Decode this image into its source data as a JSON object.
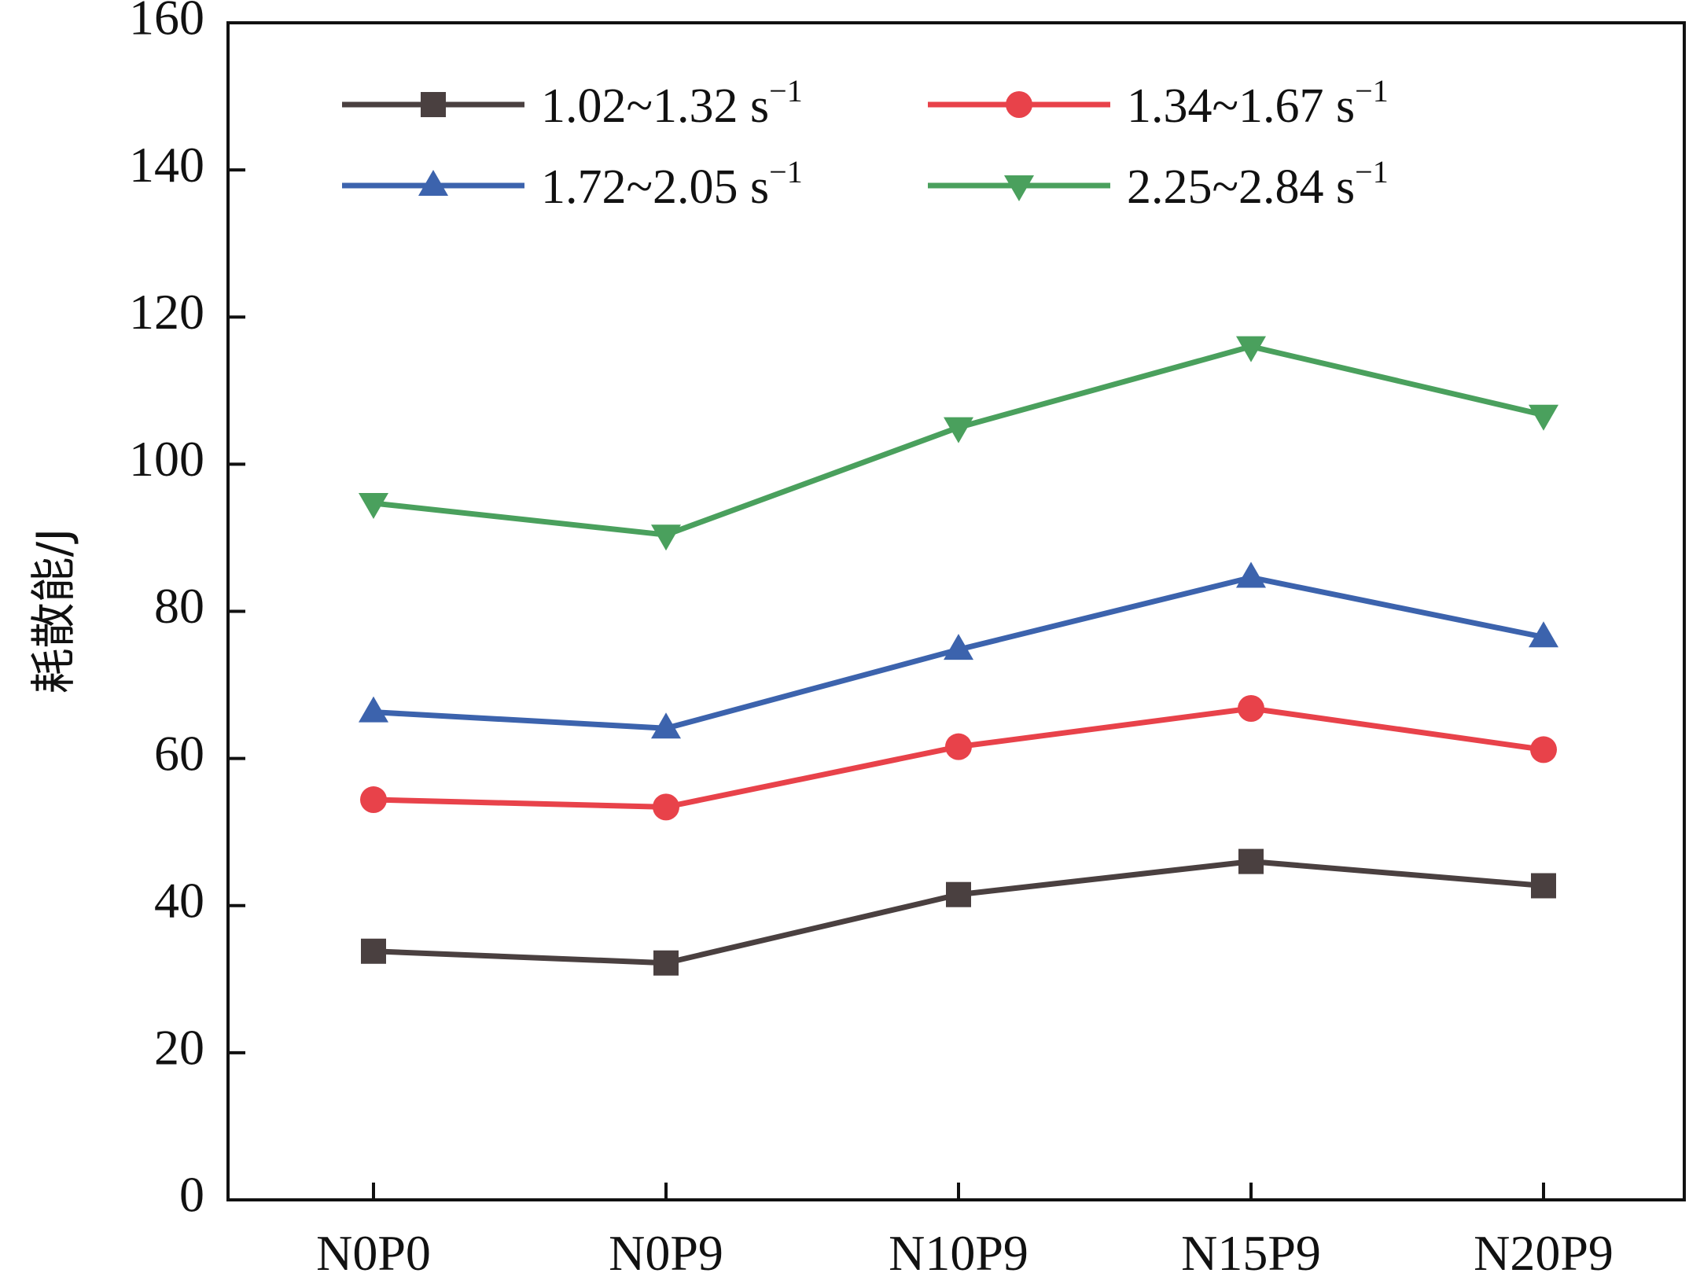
{
  "chart_data": {
    "type": "line",
    "categories": [
      "N0P0",
      "N0P9",
      "N10P9",
      "N15P9",
      "N20P9"
    ],
    "series": [
      {
        "name": "1.02~1.32 s",
        "name_sup": "−1",
        "color": "#4a4040",
        "marker": "square",
        "values": [
          33.8,
          32.2,
          41.5,
          46.0,
          42.7
        ]
      },
      {
        "name": "1.34~1.67 s",
        "name_sup": "−1",
        "color": "#e8424a",
        "marker": "circle",
        "values": [
          54.4,
          53.4,
          61.6,
          66.8,
          61.2
        ]
      },
      {
        "name": "1.72~2.05 s",
        "name_sup": "−1",
        "color": "#3c63ad",
        "marker": "triangle-up",
        "values": [
          66.3,
          64.1,
          74.8,
          84.6,
          76.5
        ]
      },
      {
        "name": "2.25~2.84 s",
        "name_sup": "−1",
        "color": "#4aa05d",
        "marker": "triangle-down",
        "values": [
          94.7,
          90.4,
          105.0,
          116.0,
          106.7
        ]
      }
    ],
    "xlabel": "",
    "ylabel": "耗散能/J",
    "ylim": [
      0,
      160
    ],
    "yticks": [
      0,
      20,
      40,
      60,
      80,
      100,
      120,
      140,
      160
    ],
    "grid": false,
    "legend_position": "top"
  }
}
